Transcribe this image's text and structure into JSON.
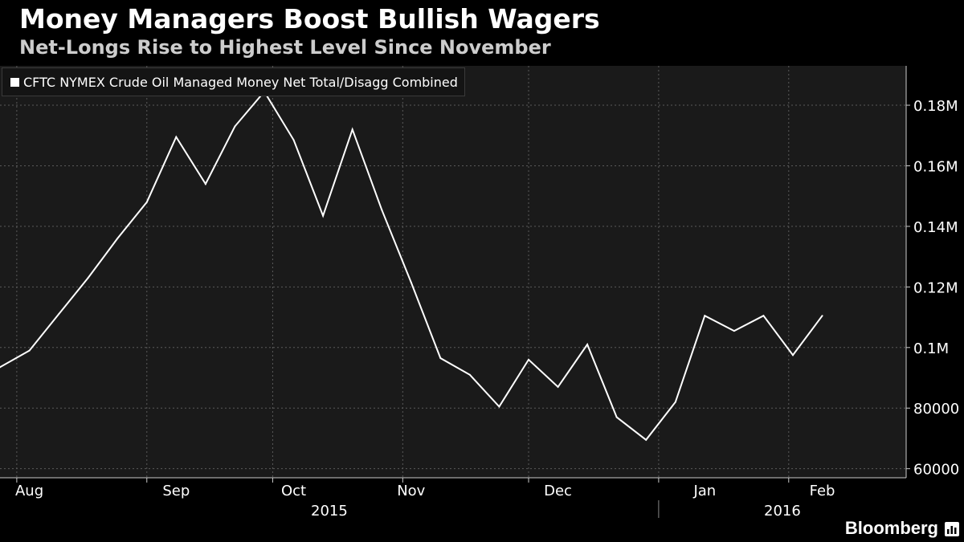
{
  "header": {
    "title": "Money Managers Boost Bullish Wagers",
    "subtitle": "Net-Longs Rise to Highest Level Since November"
  },
  "brand": {
    "name": "Bloomberg",
    "logo_icon": "bloomberg-chart-icon"
  },
  "colors": {
    "background": "#000000",
    "plot_background": "#1a1a1a",
    "line": "#ffffff",
    "grid": "#5a5a5a"
  },
  "chart_data": {
    "type": "line",
    "title": "Money Managers Boost Bullish Wagers",
    "subtitle": "Net-Longs Rise to Highest Level Since November",
    "xlabel": "",
    "ylabel": "",
    "legend_position": "top-left",
    "grid": true,
    "ylim": [
      57000,
      193000
    ],
    "y_axis_side": "right",
    "y_ticks": [
      {
        "value": 60000,
        "label": "60000"
      },
      {
        "value": 80000,
        "label": "80000"
      },
      {
        "value": 100000,
        "label": "0.1M"
      },
      {
        "value": 120000,
        "label": "0.12M"
      },
      {
        "value": 140000,
        "label": "0.14M"
      },
      {
        "value": 160000,
        "label": "0.16M"
      },
      {
        "value": 180000,
        "label": "0.18M"
      }
    ],
    "xlim": [
      "2015-07-28",
      "2016-02-29"
    ],
    "x_month_labels": [
      {
        "date": "2015-08-04",
        "label": "Aug"
      },
      {
        "date": "2015-09-08",
        "label": "Sep"
      },
      {
        "date": "2015-10-06",
        "label": "Oct"
      },
      {
        "date": "2015-11-03",
        "label": "Nov"
      },
      {
        "date": "2015-12-08",
        "label": "Dec"
      },
      {
        "date": "2016-01-12",
        "label": "Jan"
      },
      {
        "date": "2016-02-09",
        "label": "Feb"
      }
    ],
    "x_gridlines": [
      "2015-08-01",
      "2015-09-01",
      "2015-10-01",
      "2015-11-01",
      "2015-12-01",
      "2016-01-01",
      "2016-02-01",
      "2016-03-01"
    ],
    "x_year_labels": [
      {
        "label": "2015",
        "from": "2015-07-28",
        "to": "2016-01-01"
      },
      {
        "label": "2016",
        "from": "2016-01-01",
        "to": "2016-02-29"
      }
    ],
    "series": [
      {
        "name": "CFTC NYMEX Crude Oil Managed Money Net Total/Disagg Combined",
        "color": "#ffffff",
        "points": [
          {
            "x": "2015-07-28",
            "y": 93500
          },
          {
            "x": "2015-08-04",
            "y": 99000
          },
          {
            "x": "2015-08-11",
            "y": 111000
          },
          {
            "x": "2015-08-18",
            "y": 123000
          },
          {
            "x": "2015-08-25",
            "y": 136000
          },
          {
            "x": "2015-09-01",
            "y": 148000
          },
          {
            "x": "2015-09-08",
            "y": 169500
          },
          {
            "x": "2015-09-15",
            "y": 154000
          },
          {
            "x": "2015-09-22",
            "y": 173000
          },
          {
            "x": "2015-09-29",
            "y": 184500
          },
          {
            "x": "2015-10-06",
            "y": 168500
          },
          {
            "x": "2015-10-13",
            "y": 143500
          },
          {
            "x": "2015-10-20",
            "y": 172000
          },
          {
            "x": "2015-10-27",
            "y": 145500
          },
          {
            "x": "2015-11-03",
            "y": 121500
          },
          {
            "x": "2015-11-10",
            "y": 96500
          },
          {
            "x": "2015-11-17",
            "y": 91000
          },
          {
            "x": "2015-11-24",
            "y": 80500
          },
          {
            "x": "2015-12-01",
            "y": 96000
          },
          {
            "x": "2015-12-08",
            "y": 87000
          },
          {
            "x": "2015-12-15",
            "y": 101000
          },
          {
            "x": "2015-12-22",
            "y": 77000
          },
          {
            "x": "2015-12-29",
            "y": 69500
          },
          {
            "x": "2016-01-05",
            "y": 82000
          },
          {
            "x": "2016-01-12",
            "y": 110500
          },
          {
            "x": "2016-01-19",
            "y": 105500
          },
          {
            "x": "2016-01-26",
            "y": 110500
          },
          {
            "x": "2016-02-02",
            "y": 97500
          },
          {
            "x": "2016-02-09",
            "y": 110500
          }
        ]
      }
    ]
  }
}
